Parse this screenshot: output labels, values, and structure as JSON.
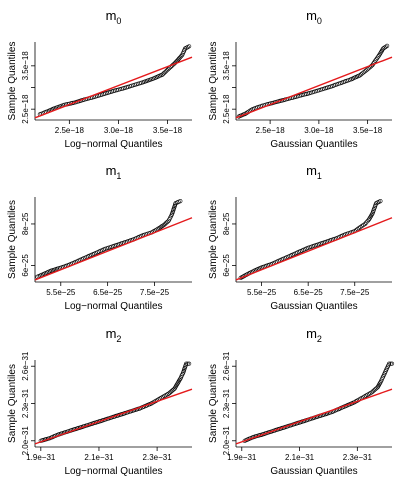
{
  "chart_data": [
    {
      "type": "scatter",
      "title_base": "m",
      "title_sub": "0",
      "xlabel": "Log−normal Quantiles",
      "ylabel": "Sample Quantiles",
      "xlim": [
        2.15e-18,
        3.75e-18
      ],
      "ylim": [
        2.25e-18,
        4.05e-18
      ],
      "xticks": [
        2.5e-18,
        3e-18,
        3.5e-18
      ],
      "xtick_labels": [
        "2.5e−18",
        "3.0e−18",
        "3.5e−18"
      ],
      "yticks": [
        2.5e-18,
        3e-18,
        3.5e-18
      ],
      "ytick_labels": [
        "2.5e−18",
        "",
        "3.5e−18"
      ],
      "line": [
        [
          2.15e-18,
          2.3e-18
        ],
        [
          3.75e-18,
          3.7e-18
        ]
      ],
      "points": [
        [
          2.2e-18,
          2.38e-18
        ],
        [
          2.28e-18,
          2.45e-18
        ],
        [
          2.35e-18,
          2.52e-18
        ],
        [
          2.45e-18,
          2.6e-18
        ],
        [
          2.55e-18,
          2.65e-18
        ],
        [
          2.65e-18,
          2.72e-18
        ],
        [
          2.75e-18,
          2.78e-18
        ],
        [
          2.85e-18,
          2.85e-18
        ],
        [
          2.95e-18,
          2.92e-18
        ],
        [
          3.05e-18,
          2.98e-18
        ],
        [
          3.15e-18,
          3.05e-18
        ],
        [
          3.25e-18,
          3.12e-18
        ],
        [
          3.35e-18,
          3.2e-18
        ],
        [
          3.45e-18,
          3.3e-18
        ],
        [
          3.52e-18,
          3.45e-18
        ],
        [
          3.57e-18,
          3.55e-18
        ],
        [
          3.6e-18,
          3.62e-18
        ],
        [
          3.65e-18,
          3.75e-18
        ],
        [
          3.68e-18,
          3.9e-18
        ],
        [
          3.72e-18,
          3.95e-18
        ]
      ]
    },
    {
      "type": "scatter",
      "title_base": "m",
      "title_sub": "0",
      "xlabel": "Gaussian Quantiles",
      "ylabel": "Sample Quantiles",
      "xlim": [
        2.15e-18,
        3.75e-18
      ],
      "ylim": [
        2.25e-18,
        4.05e-18
      ],
      "xticks": [
        2.5e-18,
        3e-18,
        3.5e-18
      ],
      "xtick_labels": [
        "2.5e−18",
        "3.0e−18",
        "3.5e−18"
      ],
      "yticks": [
        2.5e-18,
        3e-18,
        3.5e-18
      ],
      "ytick_labels": [
        "2.5e−18",
        "",
        "3.5e−18"
      ],
      "line": [
        [
          2.15e-18,
          2.3e-18
        ],
        [
          3.75e-18,
          3.7e-18
        ]
      ],
      "points": [
        [
          2.18e-18,
          2.33e-18
        ],
        [
          2.25e-18,
          2.4e-18
        ],
        [
          2.32e-18,
          2.5e-18
        ],
        [
          2.42e-18,
          2.58e-18
        ],
        [
          2.52e-18,
          2.64e-18
        ],
        [
          2.62e-18,
          2.7e-18
        ],
        [
          2.72e-18,
          2.76e-18
        ],
        [
          2.82e-18,
          2.82e-18
        ],
        [
          2.92e-18,
          2.88e-18
        ],
        [
          3.02e-18,
          2.95e-18
        ],
        [
          3.12e-18,
          3.02e-18
        ],
        [
          3.22e-18,
          3.1e-18
        ],
        [
          3.32e-18,
          3.18e-18
        ],
        [
          3.42e-18,
          3.28e-18
        ],
        [
          3.5e-18,
          3.42e-18
        ],
        [
          3.55e-18,
          3.52e-18
        ],
        [
          3.58e-18,
          3.62e-18
        ],
        [
          3.62e-18,
          3.75e-18
        ],
        [
          3.66e-18,
          3.9e-18
        ],
        [
          3.7e-18,
          3.96e-18
        ]
      ]
    },
    {
      "type": "scatter",
      "title_base": "m",
      "title_sub": "1",
      "xlabel": "Log−normal Quantiles",
      "ylabel": "Sample Quantiles",
      "xlim": [
        4.95e-25,
        8.3e-25
      ],
      "ylim": [
        5.2e-25,
        9.3e-25
      ],
      "xticks": [
        5.5e-25,
        6.5e-25,
        7.5e-25
      ],
      "xtick_labels": [
        "5.5e−25",
        "6.5e−25",
        "7.5e−25"
      ],
      "yticks": [
        6e-25,
        8e-25
      ],
      "ytick_labels": [
        "6e−25",
        "8e−25"
      ],
      "line": [
        [
          4.95e-25,
          5.3e-25
        ],
        [
          8.3e-25,
          8.3e-25
        ]
      ],
      "points": [
        [
          5e-25,
          5.45e-25
        ],
        [
          5.15e-25,
          5.6e-25
        ],
        [
          5.3e-25,
          5.75e-25
        ],
        [
          5.45e-25,
          5.85e-25
        ],
        [
          5.65e-25,
          6e-25
        ],
        [
          5.85e-25,
          6.2e-25
        ],
        [
          6.05e-25,
          6.4e-25
        ],
        [
          6.25e-25,
          6.6e-25
        ],
        [
          6.45e-25,
          6.8e-25
        ],
        [
          6.65e-25,
          6.95e-25
        ],
        [
          6.85e-25,
          7.1e-25
        ],
        [
          7.05e-25,
          7.25e-25
        ],
        [
          7.25e-25,
          7.45e-25
        ],
        [
          7.45e-25,
          7.6e-25
        ],
        [
          7.6e-25,
          7.8e-25
        ],
        [
          7.7e-25,
          7.95e-25
        ],
        [
          7.8e-25,
          8.15e-25
        ],
        [
          7.87e-25,
          8.45e-25
        ],
        [
          7.95e-25,
          9e-25
        ],
        [
          8.05e-25,
          9.1e-25
        ]
      ]
    },
    {
      "type": "scatter",
      "title_base": "m",
      "title_sub": "1",
      "xlabel": "Gaussian Quantiles",
      "ylabel": "Sample Quantiles",
      "xlim": [
        4.95e-25,
        8.3e-25
      ],
      "ylim": [
        5.2e-25,
        9.3e-25
      ],
      "xticks": [
        5.5e-25,
        6.5e-25,
        7.5e-25
      ],
      "xtick_labels": [
        "5.5e−25",
        "6.5e−25",
        "7.5e−25"
      ],
      "yticks": [
        6e-25,
        8e-25
      ],
      "ytick_labels": [
        "6e−25",
        "8e−25"
      ],
      "line": [
        [
          4.95e-25,
          5.3e-25
        ],
        [
          8.3e-25,
          8.3e-25
        ]
      ],
      "points": [
        [
          5.05e-25,
          5.4e-25
        ],
        [
          5.2e-25,
          5.58e-25
        ],
        [
          5.35e-25,
          5.75e-25
        ],
        [
          5.5e-25,
          5.9e-25
        ],
        [
          5.7e-25,
          6.05e-25
        ],
        [
          5.9e-25,
          6.25e-25
        ],
        [
          6.1e-25,
          6.45e-25
        ],
        [
          6.3e-25,
          6.65e-25
        ],
        [
          6.5e-25,
          6.85e-25
        ],
        [
          6.7e-25,
          7e-25
        ],
        [
          6.9e-25,
          7.15e-25
        ],
        [
          7.1e-25,
          7.3e-25
        ],
        [
          7.3e-25,
          7.5e-25
        ],
        [
          7.5e-25,
          7.65e-25
        ],
        [
          7.62e-25,
          7.85e-25
        ],
        [
          7.72e-25,
          8e-25
        ],
        [
          7.8e-25,
          8.2e-25
        ],
        [
          7.88e-25,
          8.5e-25
        ],
        [
          7.96e-25,
          9e-25
        ],
        [
          8.05e-25,
          9.1e-25
        ]
      ]
    },
    {
      "type": "scatter",
      "title_base": "m",
      "title_sub": "2",
      "xlabel": "Log−normal Quantiles",
      "ylabel": "Sample Quantiles",
      "xlim": [
        1.88e-31,
        2.42e-31
      ],
      "ylim": [
        1.95e-31,
        2.65e-31
      ],
      "xticks": [
        1.9e-31,
        2.1e-31,
        2.3e-31
      ],
      "xtick_labels": [
        "1.9e−31",
        "2.1e−31",
        "2.3e−31"
      ],
      "yticks": [
        2e-31,
        2.3e-31,
        2.6e-31
      ],
      "ytick_labels": [
        "2.0e−31",
        "2.3e−31",
        "2.6e−31"
      ],
      "line": [
        [
          1.88e-31,
          1.975e-31
        ],
        [
          2.42e-31,
          2.415e-31
        ]
      ],
      "points": [
        [
          1.9e-31,
          2e-31
        ],
        [
          1.93e-31,
          2.02e-31
        ],
        [
          1.96e-31,
          2.05e-31
        ],
        [
          2e-31,
          2.08e-31
        ],
        [
          2.04e-31,
          2.11e-31
        ],
        [
          2.08e-31,
          2.14e-31
        ],
        [
          2.12e-31,
          2.17e-31
        ],
        [
          2.16e-31,
          2.2e-31
        ],
        [
          2.2e-31,
          2.23e-31
        ],
        [
          2.24e-31,
          2.26e-31
        ],
        [
          2.28e-31,
          2.3e-31
        ],
        [
          2.31e-31,
          2.34e-31
        ],
        [
          2.34e-31,
          2.38e-31
        ],
        [
          2.36e-31,
          2.42e-31
        ],
        [
          2.37e-31,
          2.46e-31
        ],
        [
          2.38e-31,
          2.5e-31
        ],
        [
          2.39e-31,
          2.55e-31
        ],
        [
          2.4e-31,
          2.62e-31
        ],
        [
          2.41e-31,
          2.62e-31
        ]
      ]
    },
    {
      "type": "scatter",
      "title_base": "m",
      "title_sub": "2",
      "xlabel": "Gaussian Quantiles",
      "ylabel": "Sample Quantiles",
      "xlim": [
        1.88e-31,
        2.42e-31
      ],
      "ylim": [
        1.95e-31,
        2.65e-31
      ],
      "xticks": [
        1.9e-31,
        2.1e-31,
        2.3e-31
      ],
      "xtick_labels": [
        "1.9e−31",
        "2.1e−31",
        "2.3e−31"
      ],
      "yticks": [
        2e-31,
        2.3e-31,
        2.6e-31
      ],
      "ytick_labels": [
        "2.0e−31",
        "2.3e−31",
        "2.6e−31"
      ],
      "line": [
        [
          1.88e-31,
          1.975e-31
        ],
        [
          2.42e-31,
          2.415e-31
        ]
      ],
      "points": [
        [
          1.91e-31,
          2e-31
        ],
        [
          1.94e-31,
          2.03e-31
        ],
        [
          1.97e-31,
          2.05e-31
        ],
        [
          2.01e-31,
          2.08e-31
        ],
        [
          2.05e-31,
          2.11e-31
        ],
        [
          2.09e-31,
          2.14e-31
        ],
        [
          2.13e-31,
          2.17e-31
        ],
        [
          2.17e-31,
          2.2e-31
        ],
        [
          2.21e-31,
          2.23e-31
        ],
        [
          2.25e-31,
          2.27e-31
        ],
        [
          2.29e-31,
          2.31e-31
        ],
        [
          2.32e-31,
          2.35e-31
        ],
        [
          2.35e-31,
          2.39e-31
        ],
        [
          2.37e-31,
          2.43e-31
        ],
        [
          2.38e-31,
          2.47e-31
        ],
        [
          2.39e-31,
          2.52e-31
        ],
        [
          2.4e-31,
          2.57e-31
        ],
        [
          2.41e-31,
          2.62e-31
        ],
        [
          2.42e-31,
          2.62e-31
        ]
      ]
    }
  ]
}
